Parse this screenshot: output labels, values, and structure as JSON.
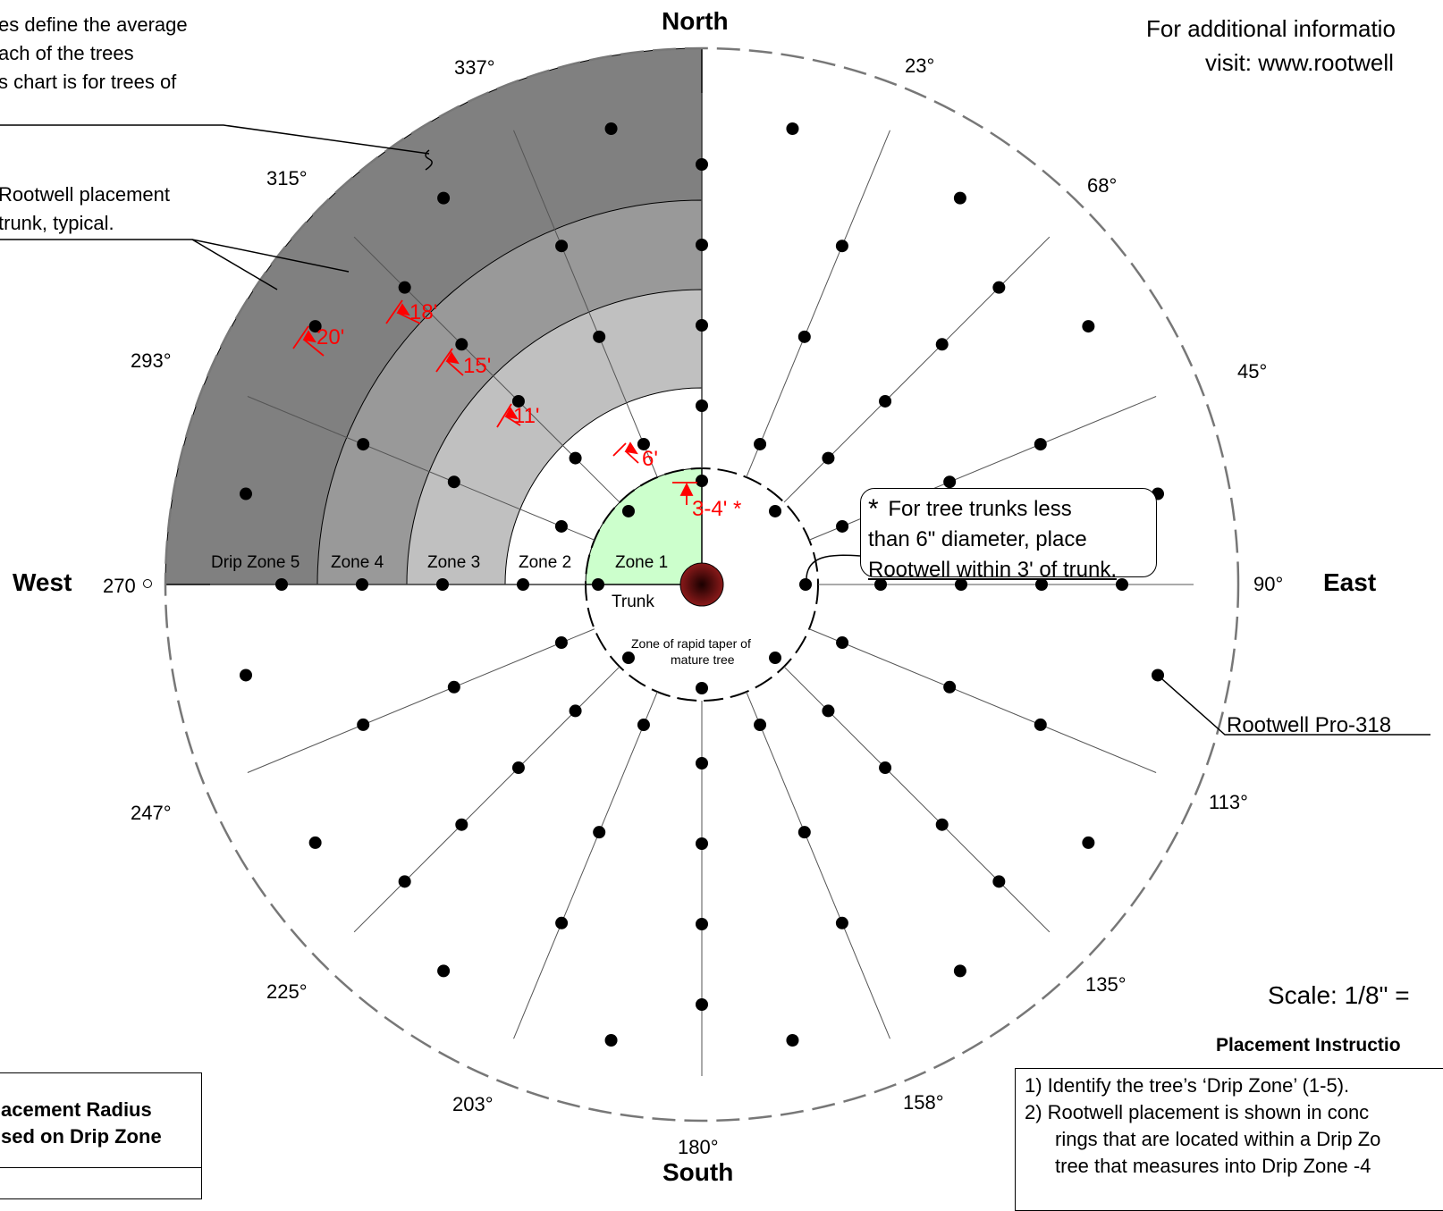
{
  "cardinals": {
    "north": "North",
    "south": "South",
    "east": "East",
    "west": "West"
  },
  "angles": {
    "a337": "337°",
    "a23": "23°",
    "a315": "315°",
    "a68": "68°",
    "a293": "293°",
    "a45": "45°",
    "a270": "270",
    "a90": "90°",
    "a247": "247°",
    "a113": "113°",
    "a225": "225°",
    "a135": "135°",
    "a203": "203°",
    "a158": "158°",
    "a180": "180°"
  },
  "notes": {
    "top_left_1": "es define the average",
    "top_left_2": "ach of the trees",
    "top_left_3": "s chart is for trees of",
    "rootwell_1": "Rootwell placement",
    "rootwell_2": "trunk, typical.",
    "top_right_1": "For additional informatio",
    "top_right_2": "visit:  www.rootwell"
  },
  "zones": {
    "zone5": "Drip Zone 5",
    "zone4": "Zone 4",
    "zone3": "Zone 3",
    "zone2": "Zone 2",
    "zone1": "Zone 1",
    "trunk": "Trunk"
  },
  "taper": {
    "line1": "Zone of rapid taper of",
    "line2": "mature tree"
  },
  "distances": {
    "d20": "20'",
    "d18": "18'",
    "d15": "15'",
    "d11": "11'",
    "d6": "6'",
    "d34": "3-4' *"
  },
  "callout": {
    "star": "*",
    "line1": "For tree trunks less",
    "line2": "than 6\" diameter, place",
    "line3": "Rootwell within 3' of trunk."
  },
  "pro_label": "Rootwell Pro-318",
  "scale": "Scale:   1/8\" =",
  "instructions": {
    "heading": "Placement Instructio",
    "step1": "1)  Identify the tree’s ‘Drip Zone’ (1-5).",
    "step2": "2)  Rootwell placement is shown in conc",
    "step2b": "rings that are located within a Drip Zo",
    "step2c": "tree that measures into Drip Zone -4"
  },
  "legend": {
    "line1": "acement Radius",
    "line2": "sed on Drip Zone"
  },
  "colors": {
    "zone5": "#808080",
    "zone4": "#999999",
    "zone3": "#c0c0c0",
    "zone1": "#ccffcc",
    "trunk": "#6b0a0a",
    "measure": "#ff0000"
  }
}
